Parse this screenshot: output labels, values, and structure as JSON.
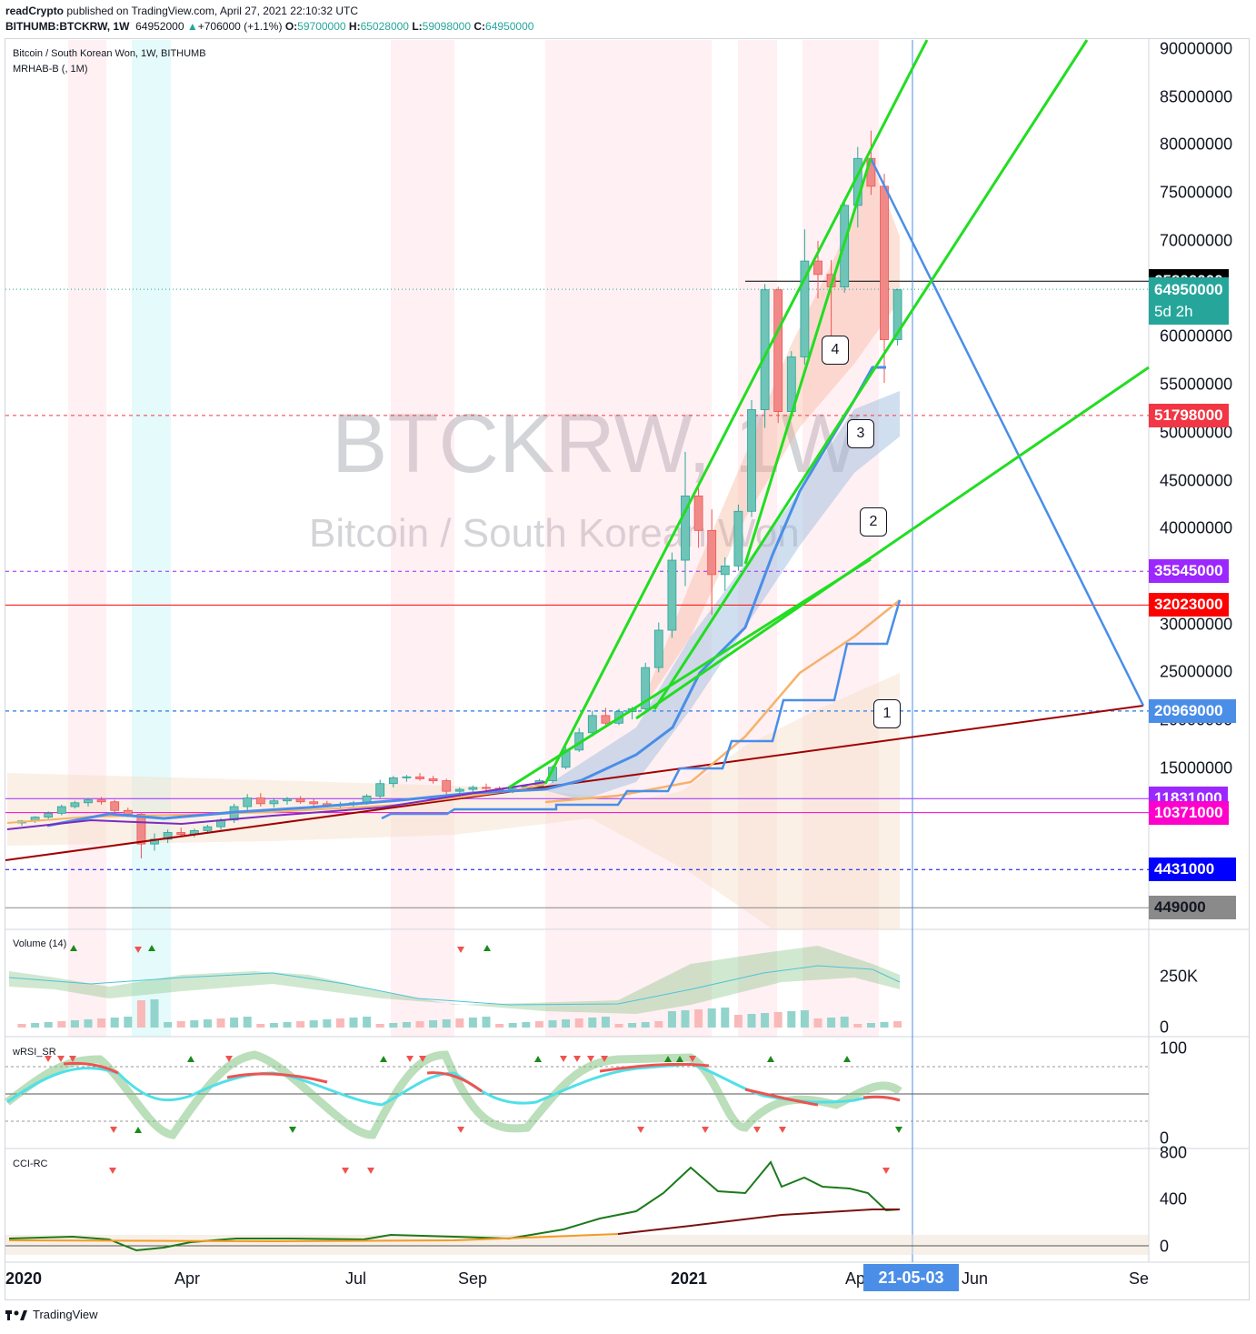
{
  "header": {
    "publisher": "readCrypto",
    "published_text": " published on TradingView.com, April 27, 2021 22:10:32 UTC",
    "symbol_line": "BITHUMB:BTCKRW, 1W",
    "last": "64952000",
    "change": "+706000 (+1.1%)",
    "open_label": "O:",
    "open": "59700000",
    "high_label": "H:",
    "high": "65028000",
    "low_label": "L:",
    "low": "59098000",
    "close_label": "C:",
    "close": "64950000"
  },
  "legend": {
    "title": "Bitcoin / South Korean Won, 1W, BITHUMB",
    "indicator": "MRHAB-B (, 1M)",
    "volume": "Volume (14)",
    "wrsi": "wRSI_SR",
    "cci": "CCI-RC"
  },
  "watermark": {
    "symbol": "BTCKRW, 1W",
    "name": "Bitcoin / South Korean Won"
  },
  "price_labels": [
    {
      "value": "65800000",
      "bg": "#000000",
      "y": 65800000
    },
    {
      "value": "64950000",
      "sub": "5d 2h",
      "bg": "#26a69a",
      "y": 64950000
    },
    {
      "value": "51798000",
      "bg": "#f23645",
      "y": 51798000
    },
    {
      "value": "35545000",
      "bg": "#9c27ff",
      "y": 35545000
    },
    {
      "value": "32023000",
      "bg": "#ff0000",
      "y": 32023000
    },
    {
      "value": "20969000",
      "bg": "#4a8ee8",
      "y": 20969000
    },
    {
      "value": "11831000",
      "bg": "#9c27ff",
      "y": 11831000
    },
    {
      "value": "10371000",
      "bg": "#ff00cc",
      "y": 10371000
    },
    {
      "value": "4431000",
      "bg": "#0000ff",
      "y": 4431000
    },
    {
      "value": "449000",
      "bg": "#8a8a8a",
      "y": 449000,
      "fg": "#131722"
    }
  ],
  "y_ticks": [
    "90000000",
    "85000000",
    "80000000",
    "75000000",
    "70000000",
    "60000000",
    "55000000",
    "50000000",
    "45000000",
    "40000000",
    "30000000",
    "25000000",
    "20000000",
    "15000000"
  ],
  "volume_ticks": [
    "250K",
    "0"
  ],
  "wrsi_ticks": [
    "100",
    "0"
  ],
  "cci_ticks": [
    "800",
    "400",
    "0"
  ],
  "x_ticks": [
    {
      "label": "2020",
      "bold": true
    },
    {
      "label": "Apr",
      "bold": false
    },
    {
      "label": "Jul",
      "bold": false
    },
    {
      "label": "Sep",
      "bold": false
    },
    {
      "label": "2021",
      "bold": true
    },
    {
      "label": "Ap",
      "bold": false
    },
    {
      "label": "Jun",
      "bold": false
    },
    {
      "label": "Se",
      "bold": false
    }
  ],
  "crosshair_date": "21-05-03",
  "badges": [
    "1",
    "2",
    "3",
    "4"
  ],
  "footer": {
    "brand": "TradingView"
  },
  "colors": {
    "up": "#26a69a",
    "down": "#ef5350",
    "green_line": "#00e000",
    "blue_line": "#4a8ee8",
    "trend": "#a52a2a"
  },
  "chart_data": {
    "type": "candlestick",
    "title": "Bitcoin / South Korean Won, 1W, BITHUMB",
    "ylim": [
      0,
      92000000
    ],
    "candles": [
      [
        9300000.0,
        9600000.0,
        9000000.0,
        9500000.0
      ],
      [
        9500000.0,
        10000000.0,
        9300000.0,
        9900000.0
      ],
      [
        9900000.0,
        10500000.0,
        9700000.0,
        10300000.0
      ],
      [
        10300000.0,
        11200000.0,
        10100000.0,
        11000000.0
      ],
      [
        11000000.0,
        11600000.0,
        10800000.0,
        11400000.0
      ],
      [
        11400000.0,
        11900000.0,
        11000000.0,
        11700000.0
      ],
      [
        11700000.0,
        12000000.0,
        11200000.0,
        11500000.0
      ],
      [
        11500000.0,
        11700000.0,
        10400000.0,
        10600000.0
      ],
      [
        10600000.0,
        10900000.0,
        9900000.0,
        10200000.0
      ],
      [
        10200000.0,
        10400000.0,
        5600000.0,
        7100000.0
      ],
      [
        7100000.0,
        8200000.0,
        6400000.0,
        7600000.0
      ],
      [
        7600000.0,
        8600000.0,
        7200000.0,
        8300000.0
      ],
      [
        8300000.0,
        8800000.0,
        7900000.0,
        8100000.0
      ],
      [
        8100000.0,
        8700000.0,
        7800000.0,
        8500000.0
      ],
      [
        8500000.0,
        9100000.0,
        8200000.0,
        8900000.0
      ],
      [
        8900000.0,
        9800000.0,
        8600000.0,
        9600000.0
      ],
      [
        9600000.0,
        11300000.0,
        9300000.0,
        11000000.0
      ],
      [
        11000000.0,
        12300000.0,
        10600000.0,
        11900000.0
      ],
      [
        11900000.0,
        12400000.0,
        11000000.0,
        11300000.0
      ],
      [
        11300000.0,
        11900000.0,
        10900000.0,
        11600000.0
      ],
      [
        11600000.0,
        12000000.0,
        11200000.0,
        11800000.0
      ],
      [
        11800000.0,
        12100000.0,
        11300000.0,
        11500000.0
      ],
      [
        11500000.0,
        11800000.0,
        11000000.0,
        11300000.0
      ],
      [
        11300000.0,
        11600000.0,
        10900000.0,
        11100000.0
      ],
      [
        11100000.0,
        11500000.0,
        10800000.0,
        11200000.0
      ],
      [
        11200000.0,
        11600000.0,
        10900000.0,
        11400000.0
      ],
      [
        11400000.0,
        12300000.0,
        11200000.0,
        12100000.0
      ],
      [
        12100000.0,
        13800000.0,
        11900000.0,
        13400000.0
      ],
      [
        13400000.0,
        14200000.0,
        13000000.0,
        14000000.0
      ],
      [
        14000000.0,
        14300000.0,
        13600000.0,
        14100000.0
      ],
      [
        14100000.0,
        14500000.0,
        13700000.0,
        13900000.0
      ],
      [
        13900000.0,
        14200000.0,
        13400000.0,
        13700000.0
      ],
      [
        13700000.0,
        13900000.0,
        12200000.0,
        12600000.0
      ],
      [
        12600000.0,
        13000000.0,
        12000000.0,
        12800000.0
      ],
      [
        12800000.0,
        13200000.0,
        12400000.0,
        13000000.0
      ],
      [
        13000000.0,
        13400000.0,
        12600000.0,
        12900000.0
      ],
      [
        12900000.0,
        13100000.0,
        12500000.0,
        12700000.0
      ],
      [
        12700000.0,
        13000000.0,
        12400000.0,
        12900000.0
      ],
      [
        12900000.0,
        13300000.0,
        12600000.0,
        13100000.0
      ],
      [
        13100000.0,
        13900000.0,
        12900000.0,
        13700000.0
      ],
      [
        13700000.0,
        15300000.0,
        13500000.0,
        15100000.0
      ],
      [
        15100000.0,
        17200000.0,
        14900000.0,
        16900000.0
      ],
      [
        16900000.0,
        19200000.0,
        16700000.0,
        18700000.0
      ],
      [
        18700000.0,
        21000000.0,
        18300000.0,
        20500000.0
      ],
      [
        20500000.0,
        21300000.0,
        19200000.0,
        19700000.0
      ],
      [
        19700000.0,
        21200000.0,
        19500000.0,
        20900000.0
      ],
      [
        20900000.0,
        21400000.0,
        20100000.0,
        21200000.0
      ],
      [
        21200000.0,
        26000000.0,
        21000000.0,
        25500000.0
      ],
      [
        25500000.0,
        30200000.0,
        25000000.0,
        29400000.0
      ],
      [
        29400000.0,
        37500000.0,
        28600000.0,
        36700000.0
      ],
      [
        36700000.0,
        48000000.0,
        34000000.0,
        43400000.0
      ],
      [
        43400000.0,
        44500000.0,
        38000000.0,
        39800000.0
      ],
      [
        39800000.0,
        42000000.0,
        31000000.0,
        35200000.0
      ],
      [
        35200000.0,
        37000000.0,
        33500000.0,
        36100000.0
      ],
      [
        36100000.0,
        42500000.0,
        35600000.0,
        41800000.0
      ],
      [
        41800000.0,
        53400000.0,
        41200000.0,
        52400000.0
      ],
      [
        52400000.0,
        65500000.0,
        50500000.0,
        64900000.0
      ],
      [
        64900000.0,
        65200000.0,
        51000000.0,
        52200000.0
      ],
      [
        52200000.0,
        58500000.0,
        51500000.0,
        57900000.0
      ],
      [
        57900000.0,
        71200000.0,
        57100000.0,
        67900000.0
      ],
      [
        67900000.0,
        70000000.0,
        64000000.0,
        66500000.0
      ],
      [
        66500000.0,
        68000000.0,
        59000000.0,
        65200000.0
      ],
      [
        65200000.0,
        74300000.0,
        64600000.0,
        73700000.0
      ],
      [
        73700000.0,
        79800000.0,
        71400000.0,
        78600000.0
      ],
      [
        78600000.0,
        81500000.0,
        74800000.0,
        75700000.0
      ],
      [
        75700000.0,
        77000000.0,
        55200000.0,
        59700000.0
      ],
      [
        59700000.0,
        65000000.0,
        59100000.0,
        64900000.0
      ]
    ]
  }
}
